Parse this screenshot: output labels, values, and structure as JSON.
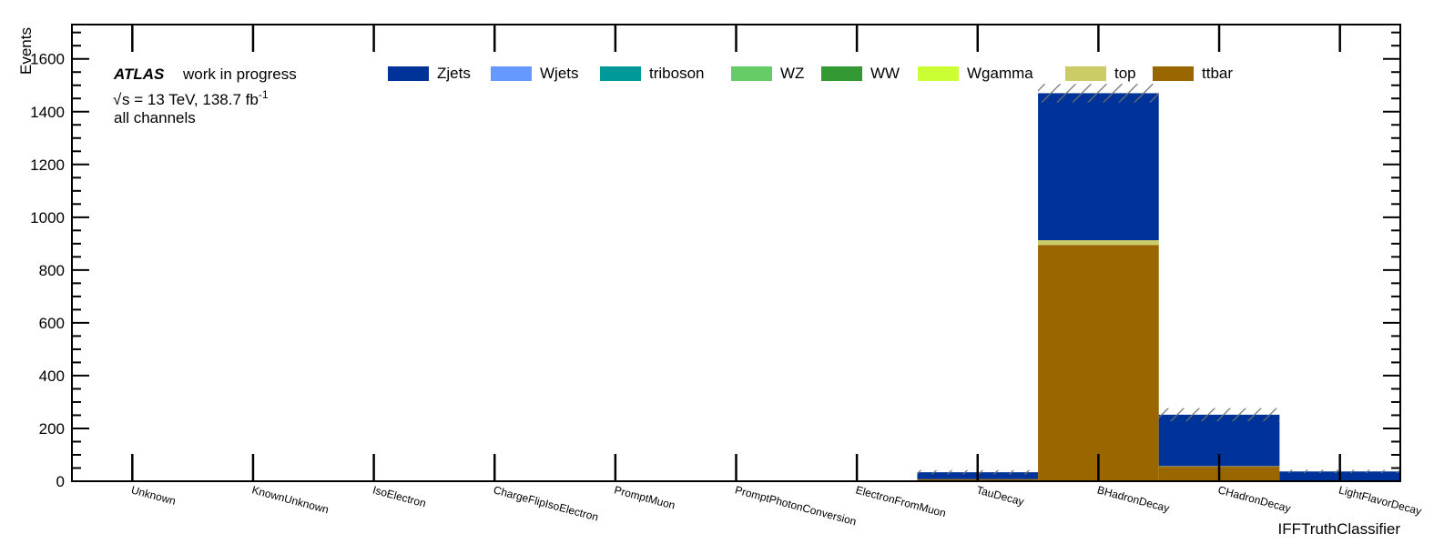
{
  "chart_data": {
    "type": "bar",
    "stacked": true,
    "title": "",
    "xlabel": "IFFTruthClassifier",
    "ylabel": "Events",
    "ylim": [
      0,
      1730
    ],
    "yticks": [
      0,
      200,
      400,
      600,
      800,
      1000,
      1200,
      1400,
      1600
    ],
    "categories": [
      "Unknown",
      "KnownUnknown",
      "IsoElectron",
      "ChargeFlipIsoElectron",
      "PromptMuon",
      "PromptPhotonConversion",
      "ElectronFromMuon",
      "TauDecay",
      "BHadronDecay",
      "CHadronDecay",
      "LightFlavorDecay"
    ],
    "series": [
      {
        "name": "ttbar",
        "color": "#996600",
        "values": [
          0,
          0,
          0,
          0,
          0,
          0,
          0,
          8,
          895,
          55,
          3
        ]
      },
      {
        "name": "top",
        "color": "#cccc66",
        "values": [
          0,
          0,
          0,
          0,
          0,
          0,
          0,
          0,
          18,
          2,
          0
        ]
      },
      {
        "name": "Wgamma",
        "color": "#ccff33",
        "values": [
          0,
          0,
          0,
          0,
          0,
          0,
          0,
          0,
          0,
          0,
          0
        ]
      },
      {
        "name": "WW",
        "color": "#339933",
        "values": [
          0,
          0,
          0,
          0,
          0,
          0,
          0,
          0,
          0,
          0,
          0
        ]
      },
      {
        "name": "WZ",
        "color": "#66cc66",
        "values": [
          0,
          0,
          0,
          0,
          0,
          0,
          0,
          0,
          0,
          0,
          0
        ]
      },
      {
        "name": "triboson",
        "color": "#009999",
        "values": [
          0,
          0,
          0,
          0,
          0,
          0,
          0,
          0,
          0,
          0,
          0
        ]
      },
      {
        "name": "Wjets",
        "color": "#6699ff",
        "values": [
          0,
          0,
          0,
          0,
          0,
          0,
          0,
          0,
          0,
          0,
          0
        ]
      },
      {
        "name": "Zjets",
        "color": "#003399",
        "values": [
          0,
          0,
          0,
          0,
          0,
          0,
          0,
          26,
          557,
          195,
          34
        ]
      }
    ],
    "uncertainty": [
      0,
      0,
      0,
      0,
      0,
      0,
      0,
      8,
      35,
      25,
      6
    ],
    "legend_order": [
      "Zjets",
      "Wjets",
      "triboson",
      "WZ",
      "WW",
      "Wgamma",
      "top",
      "ttbar"
    ],
    "legend_placement": "top",
    "grid": false
  },
  "annotations": {
    "experiment": "ATLAS",
    "status": "work in progress",
    "energy_prefix": "s = 13 TeV, 138.7 fb",
    "energy_sup": "-1",
    "channel": "all channels"
  }
}
